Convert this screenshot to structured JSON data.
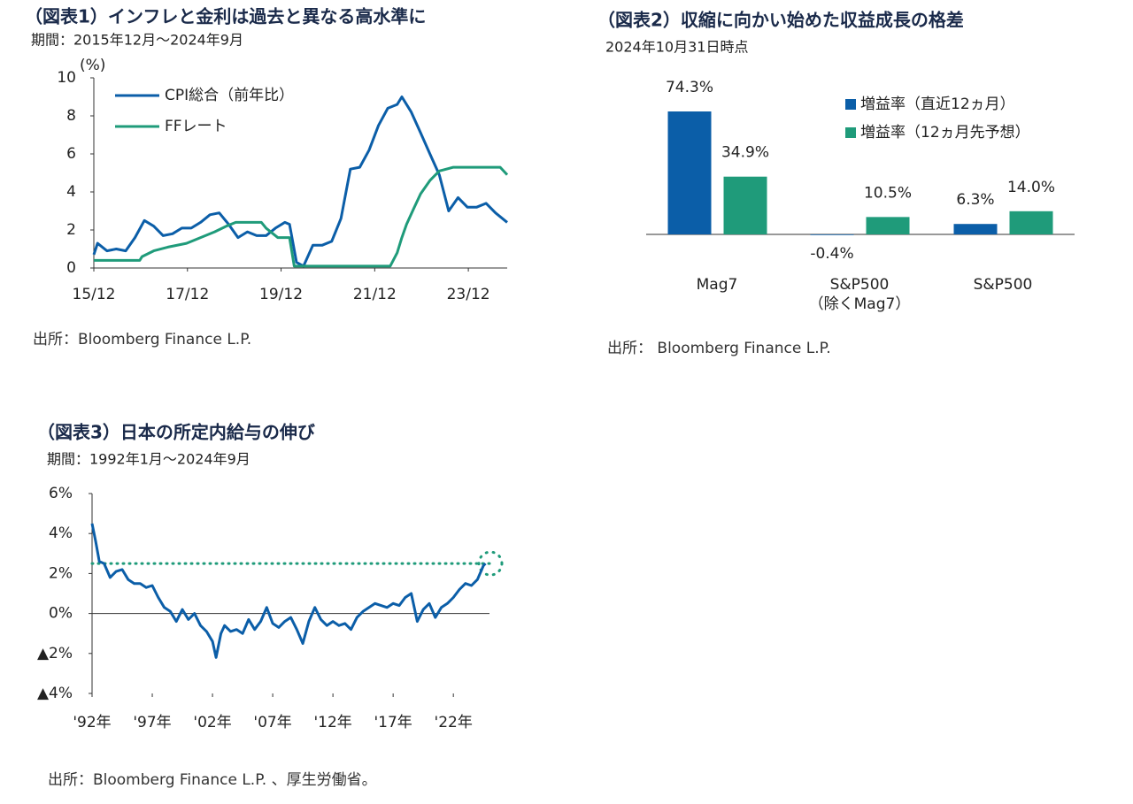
{
  "chart_data": [
    {
      "type": "line",
      "title": "（図表1）インフレと金利は過去と異なる高水準に",
      "subtitle": "期間：2015年12月～2024年9月",
      "y_unit": "(%)",
      "source": "出所：Bloomberg Finance L.P.",
      "xlim": [
        2015.92,
        2024.75
      ],
      "xticks": [
        {
          "value": 2015.92,
          "label": "15/12"
        },
        {
          "value": 2017.92,
          "label": "17/12"
        },
        {
          "value": 2019.92,
          "label": "19/12"
        },
        {
          "value": 2021.92,
          "label": "21/12"
        },
        {
          "value": 2023.92,
          "label": "23/12"
        }
      ],
      "ylim": [
        0,
        10
      ],
      "yticks": [
        0,
        2,
        4,
        6,
        8,
        10
      ],
      "grid": false,
      "series": [
        {
          "name": "CPI総合（前年比）",
          "color": "#0b5ea8",
          "x": [
            2015.92,
            2016.0,
            2016.2,
            2016.4,
            2016.6,
            2016.8,
            2017.0,
            2017.2,
            2017.4,
            2017.6,
            2017.8,
            2018.0,
            2018.2,
            2018.4,
            2018.6,
            2018.8,
            2019.0,
            2019.2,
            2019.4,
            2019.6,
            2019.8,
            2020.0,
            2020.1,
            2020.25,
            2020.4,
            2020.6,
            2020.8,
            2021.0,
            2021.2,
            2021.4,
            2021.6,
            2021.8,
            2022.0,
            2022.2,
            2022.4,
            2022.5,
            2022.7,
            2022.9,
            2023.1,
            2023.3,
            2023.5,
            2023.7,
            2023.9,
            2024.1,
            2024.3,
            2024.5,
            2024.75
          ],
          "values": [
            0.7,
            1.3,
            0.9,
            1.0,
            0.9,
            1.6,
            2.5,
            2.2,
            1.7,
            1.8,
            2.1,
            2.1,
            2.4,
            2.8,
            2.9,
            2.3,
            1.6,
            1.9,
            1.7,
            1.7,
            2.1,
            2.4,
            2.3,
            0.3,
            0.1,
            1.2,
            1.2,
            1.4,
            2.6,
            5.2,
            5.3,
            6.2,
            7.5,
            8.4,
            8.6,
            9.0,
            8.2,
            7.1,
            6.0,
            4.9,
            3.0,
            3.7,
            3.2,
            3.2,
            3.4,
            2.9,
            2.4
          ]
        },
        {
          "name": "FFレート",
          "color": "#1f9b7a",
          "x": [
            2015.92,
            2016.9,
            2016.95,
            2017.2,
            2017.5,
            2017.9,
            2018.2,
            2018.5,
            2018.75,
            2018.95,
            2019.5,
            2019.6,
            2019.85,
            2020.1,
            2020.2,
            2022.25,
            2022.4,
            2022.5,
            2022.6,
            2022.75,
            2022.9,
            2023.1,
            2023.3,
            2023.6,
            2024.6,
            2024.75
          ],
          "values": [
            0.4,
            0.4,
            0.6,
            0.9,
            1.1,
            1.3,
            1.6,
            1.9,
            2.2,
            2.4,
            2.4,
            2.1,
            1.6,
            1.6,
            0.1,
            0.1,
            0.8,
            1.6,
            2.3,
            3.1,
            3.9,
            4.6,
            5.1,
            5.3,
            5.3,
            4.9
          ]
        }
      ]
    },
    {
      "type": "bar",
      "title": "（図表2）収縮に向かい始めた収益成長の格差",
      "subtitle": "2024年10月31日時点",
      "source": "出所： Bloomberg Finance L.P.",
      "categories": [
        "Mag7",
        "S&P500\n（除くMag7）",
        "S&P500"
      ],
      "series": [
        {
          "name": "増益率（直近12ヵ月）",
          "color": "#0b5ea8",
          "values": [
            74.3,
            -0.4,
            6.3
          ],
          "value_labels": [
            "74.3%",
            "-0.4%",
            "6.3%"
          ]
        },
        {
          "name": "増益率（12ヵ月先予想）",
          "color": "#1f9b7a",
          "values": [
            34.9,
            10.5,
            14.0
          ],
          "value_labels": [
            "34.9%",
            "10.5%",
            "14.0%"
          ]
        }
      ]
    },
    {
      "type": "line",
      "title": "（図表3）日本の所定内給与の伸び",
      "subtitle": "期間：1992年1月～2024年9月",
      "source": "出所：Bloomberg Finance L.P. 、厚生労働省。",
      "xlim": [
        1992,
        2025
      ],
      "xticks": [
        {
          "value": 1992,
          "label": "'92年"
        },
        {
          "value": 1997,
          "label": "'97年"
        },
        {
          "value": 2002,
          "label": "'02年"
        },
        {
          "value": 2007,
          "label": "'07年"
        },
        {
          "value": 2012,
          "label": "'12年"
        },
        {
          "value": 2017,
          "label": "'17年"
        },
        {
          "value": 2022,
          "label": "'22年"
        }
      ],
      "ylim": [
        -4,
        6
      ],
      "yticks": [
        {
          "value": -4,
          "label": "▲4%"
        },
        {
          "value": -2,
          "label": "▲2%"
        },
        {
          "value": 0,
          "label": "0%"
        },
        {
          "value": 2,
          "label": "2%"
        },
        {
          "value": 4,
          "label": "4%"
        },
        {
          "value": 6,
          "label": "6%"
        }
      ],
      "reference_line": {
        "value": 2.5,
        "color": "#1f9b7a"
      },
      "series": [
        {
          "color": "#0b5ea8",
          "x": [
            1992.0,
            1992.3,
            1992.6,
            1993.0,
            1993.5,
            1994.0,
            1994.5,
            1995.0,
            1995.5,
            1996.0,
            1996.5,
            1997.0,
            1997.5,
            1998.0,
            1998.5,
            1999.0,
            1999.5,
            2000.0,
            2000.5,
            2001.0,
            2001.5,
            2002.0,
            2002.3,
            2002.7,
            2003.0,
            2003.5,
            2004.0,
            2004.5,
            2005.0,
            2005.5,
            2006.0,
            2006.5,
            2007.0,
            2007.5,
            2008.0,
            2008.5,
            2009.0,
            2009.5,
            2010.0,
            2010.5,
            2011.0,
            2011.5,
            2012.0,
            2012.5,
            2013.0,
            2013.5,
            2014.0,
            2014.5,
            2015.0,
            2015.5,
            2016.0,
            2016.5,
            2017.0,
            2017.5,
            2018.0,
            2018.5,
            2019.0,
            2019.5,
            2020.0,
            2020.5,
            2021.0,
            2021.5,
            2022.0,
            2022.5,
            2023.0,
            2023.5,
            2024.0,
            2024.5,
            2024.67
          ],
          "values": [
            4.5,
            3.6,
            2.6,
            2.5,
            1.8,
            2.1,
            2.2,
            1.7,
            1.5,
            1.5,
            1.3,
            1.4,
            0.8,
            0.3,
            0.1,
            -0.4,
            0.2,
            -0.3,
            0.0,
            -0.6,
            -0.9,
            -1.4,
            -2.2,
            -1.0,
            -0.6,
            -0.9,
            -0.8,
            -1.0,
            -0.3,
            -0.8,
            -0.4,
            0.3,
            -0.5,
            -0.7,
            -0.4,
            -0.2,
            -0.8,
            -1.5,
            -0.4,
            0.3,
            -0.3,
            -0.6,
            -0.4,
            -0.6,
            -0.5,
            -0.8,
            -0.2,
            0.1,
            0.3,
            0.5,
            0.4,
            0.3,
            0.5,
            0.4,
            0.8,
            1.0,
            -0.4,
            0.2,
            0.5,
            -0.2,
            0.3,
            0.5,
            0.8,
            1.2,
            1.5,
            1.4,
            1.7,
            2.4,
            2.5
          ]
        }
      ]
    }
  ]
}
